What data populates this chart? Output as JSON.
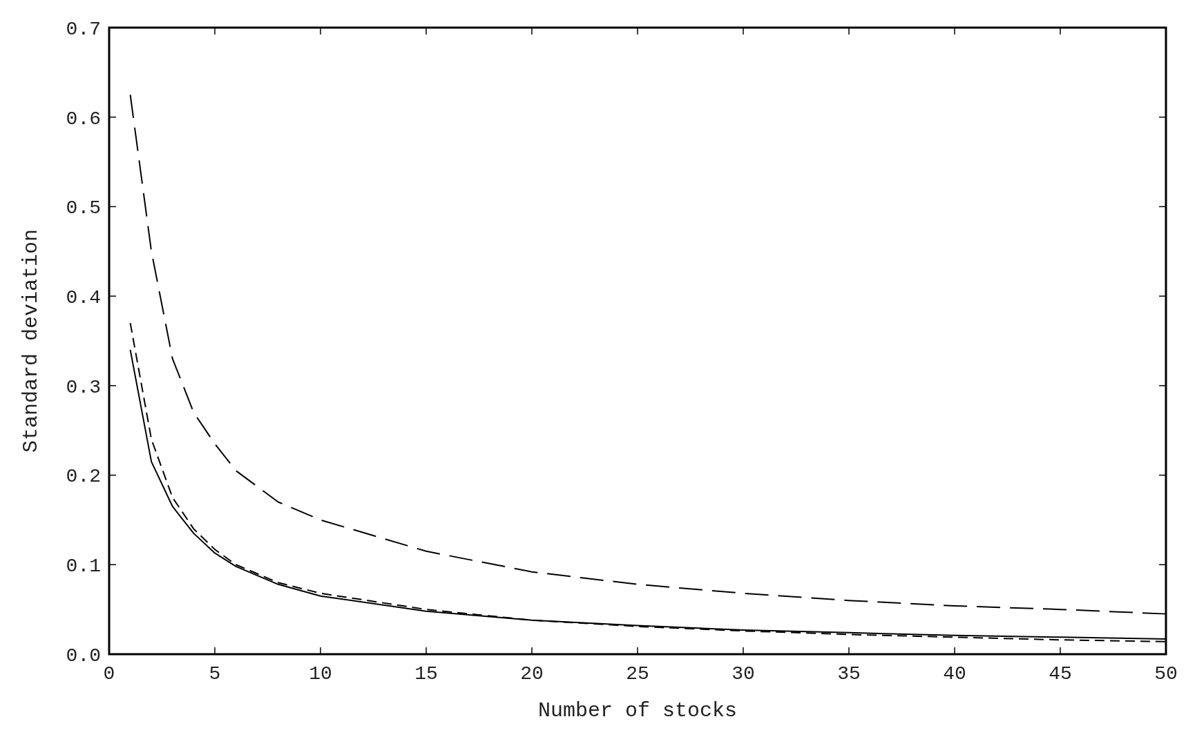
{
  "chart_data": {
    "type": "line",
    "xlabel": "Number of stocks",
    "ylabel": "Standard deviation",
    "xlim": [
      0,
      50
    ],
    "ylim": [
      0,
      0.7
    ],
    "xticks": [
      0,
      5,
      10,
      15,
      20,
      25,
      30,
      35,
      40,
      45,
      50
    ],
    "yticks": [
      {
        "value": 0,
        "label": "0.0"
      },
      0.1,
      0.2,
      0.3,
      0.4,
      0.5,
      0.6,
      0.7
    ],
    "x": [
      1,
      2,
      3,
      4,
      5,
      6,
      8,
      10,
      15,
      20,
      25,
      30,
      35,
      40,
      45,
      50
    ],
    "series": [
      {
        "color": "#000000",
        "line_style": "solid",
        "values": [
          0.34,
          0.215,
          0.165,
          0.135,
          0.113,
          0.098,
          0.078,
          0.065,
          0.048,
          0.038,
          0.032,
          0.027,
          0.024,
          0.021,
          0.019,
          0.017
        ]
      },
      {
        "color": "#000000",
        "line_style": "dashed",
        "values": [
          0.37,
          0.24,
          0.175,
          0.14,
          0.117,
          0.1,
          0.08,
          0.068,
          0.05,
          0.038,
          0.031,
          0.026,
          0.022,
          0.019,
          0.016,
          0.014
        ]
      },
      {
        "color": "#000000",
        "line_style": "dashed",
        "values": [
          0.625,
          0.45,
          0.33,
          0.27,
          0.235,
          0.205,
          0.17,
          0.15,
          0.115,
          0.092,
          0.078,
          0.068,
          0.06,
          0.054,
          0.05,
          0.045
        ]
      }
    ],
    "grid": false
  }
}
